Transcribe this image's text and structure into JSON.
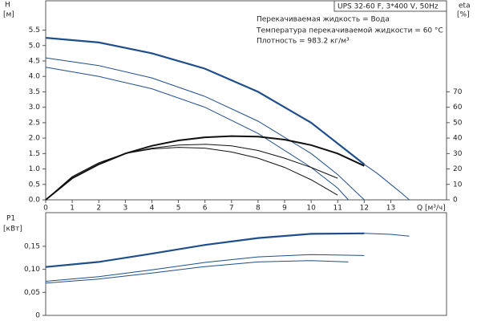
{
  "chart_data": [
    {
      "type": "line",
      "header": "UPS 32-60 F, 3*400 V, 50Hz",
      "notes": [
        "Перекачиваемая жидкость = Вода",
        "Температура перекачиваемой жидкости = 60 °C",
        "Плотность = 983.2 кг/м³"
      ],
      "y_label": "H",
      "y_unit": "[м]",
      "y2_label": "eta",
      "y2_unit": "[%]",
      "x_label": "Q [м³/ч]",
      "xlim": [
        0,
        15.1
      ],
      "xticks": [
        0,
        1,
        2,
        3,
        4,
        5,
        6,
        7,
        8,
        9,
        10,
        11,
        12,
        13
      ],
      "ylim": [
        0,
        6.45
      ],
      "yticks": [
        {
          "value": 0,
          "label": "0.0"
        },
        0.5,
        {
          "value": 1,
          "label": "1.0"
        },
        1.5,
        {
          "value": 2,
          "label": "2.0"
        },
        2.5,
        {
          "value": 3,
          "label": "3.0"
        },
        3.5,
        {
          "value": 4,
          "label": "4.0"
        },
        4.5,
        {
          "value": 5,
          "label": "5.0"
        },
        5.5
      ],
      "y2lim": [
        0,
        129
      ],
      "y2ticks": [
        0,
        10,
        20,
        30,
        40,
        50,
        60,
        70
      ],
      "series": [
        {
          "color": "#1f4e8c",
          "line_width": 2.2,
          "x": [
            0,
            2,
            4,
            6,
            8,
            10,
            12
          ],
          "values": [
            5.25,
            5.1,
            4.75,
            4.25,
            3.5,
            2.5,
            1.15
          ]
        },
        {
          "color": "#1f4e8c",
          "line_width": 1,
          "x": [
            12,
            12.5,
            13,
            13.4,
            13.7
          ],
          "values": [
            1.15,
            0.85,
            0.5,
            0.22,
            0
          ]
        },
        {
          "color": "#1f4e8c",
          "line_width": 1,
          "x": [
            0,
            2,
            4,
            6,
            8,
            10,
            11,
            12
          ],
          "values": [
            4.6,
            4.35,
            3.95,
            3.35,
            2.55,
            1.5,
            0.82,
            0
          ]
        },
        {
          "color": "#1f4e8c",
          "line_width": 1,
          "x": [
            0,
            2,
            4,
            6,
            8,
            10,
            11,
            11.4
          ],
          "values": [
            4.3,
            4.0,
            3.6,
            3.0,
            2.15,
            1.05,
            0.38,
            0
          ]
        },
        {
          "color": "#111111",
          "line_width": 2,
          "axis": "y2",
          "x": [
            0,
            1,
            2,
            3,
            4,
            5,
            6,
            7,
            8,
            9,
            10,
            11,
            12
          ],
          "values": [
            0,
            14,
            23,
            30,
            35,
            38.5,
            40.5,
            41.3,
            41,
            39,
            35.5,
            30,
            22
          ]
        },
        {
          "color": "#111111",
          "line_width": 1,
          "axis": "y2",
          "x": [
            0,
            1,
            2,
            3,
            4,
            5,
            6,
            7,
            8,
            9,
            10,
            11
          ],
          "values": [
            0,
            15,
            24,
            30,
            33.5,
            35.5,
            36,
            35,
            32,
            27,
            21,
            14
          ]
        },
        {
          "color": "#111111",
          "line_width": 1,
          "axis": "y2",
          "x": [
            0,
            1,
            2,
            3,
            4,
            5,
            6,
            7,
            8,
            9,
            10,
            11
          ],
          "values": [
            0,
            15,
            24,
            30,
            33,
            34,
            33.5,
            31,
            27,
            21,
            13,
            3
          ]
        }
      ]
    },
    {
      "type": "line",
      "y_label": "P1",
      "y_unit": "[кВт]",
      "xlim": [
        0,
        15.1
      ],
      "ylim": [
        0,
        0.223
      ],
      "yticks": [
        0,
        {
          "value": 0.05,
          "label": "0,05"
        },
        {
          "value": 0.1,
          "label": "0,10"
        },
        {
          "value": 0.15,
          "label": "0,15"
        }
      ],
      "series": [
        {
          "color": "#1f4e8c",
          "line_width": 2.2,
          "x": [
            0,
            2,
            4,
            6,
            8,
            10,
            12
          ],
          "values": [
            0.105,
            0.116,
            0.134,
            0.153,
            0.168,
            0.177,
            0.178
          ]
        },
        {
          "color": "#1f4e8c",
          "line_width": 1,
          "x": [
            12,
            13,
            13.7
          ],
          "values": [
            0.178,
            0.176,
            0.172
          ]
        },
        {
          "color": "#1f4e8c",
          "line_width": 1,
          "x": [
            0,
            2,
            4,
            6,
            8,
            10,
            12
          ],
          "values": [
            0.074,
            0.084,
            0.099,
            0.115,
            0.127,
            0.132,
            0.13
          ]
        },
        {
          "color": "#1f4e8c",
          "line_width": 1,
          "x": [
            0,
            2,
            4,
            6,
            8,
            10,
            11.4
          ],
          "values": [
            0.07,
            0.079,
            0.092,
            0.106,
            0.116,
            0.119,
            0.116
          ]
        }
      ]
    }
  ]
}
